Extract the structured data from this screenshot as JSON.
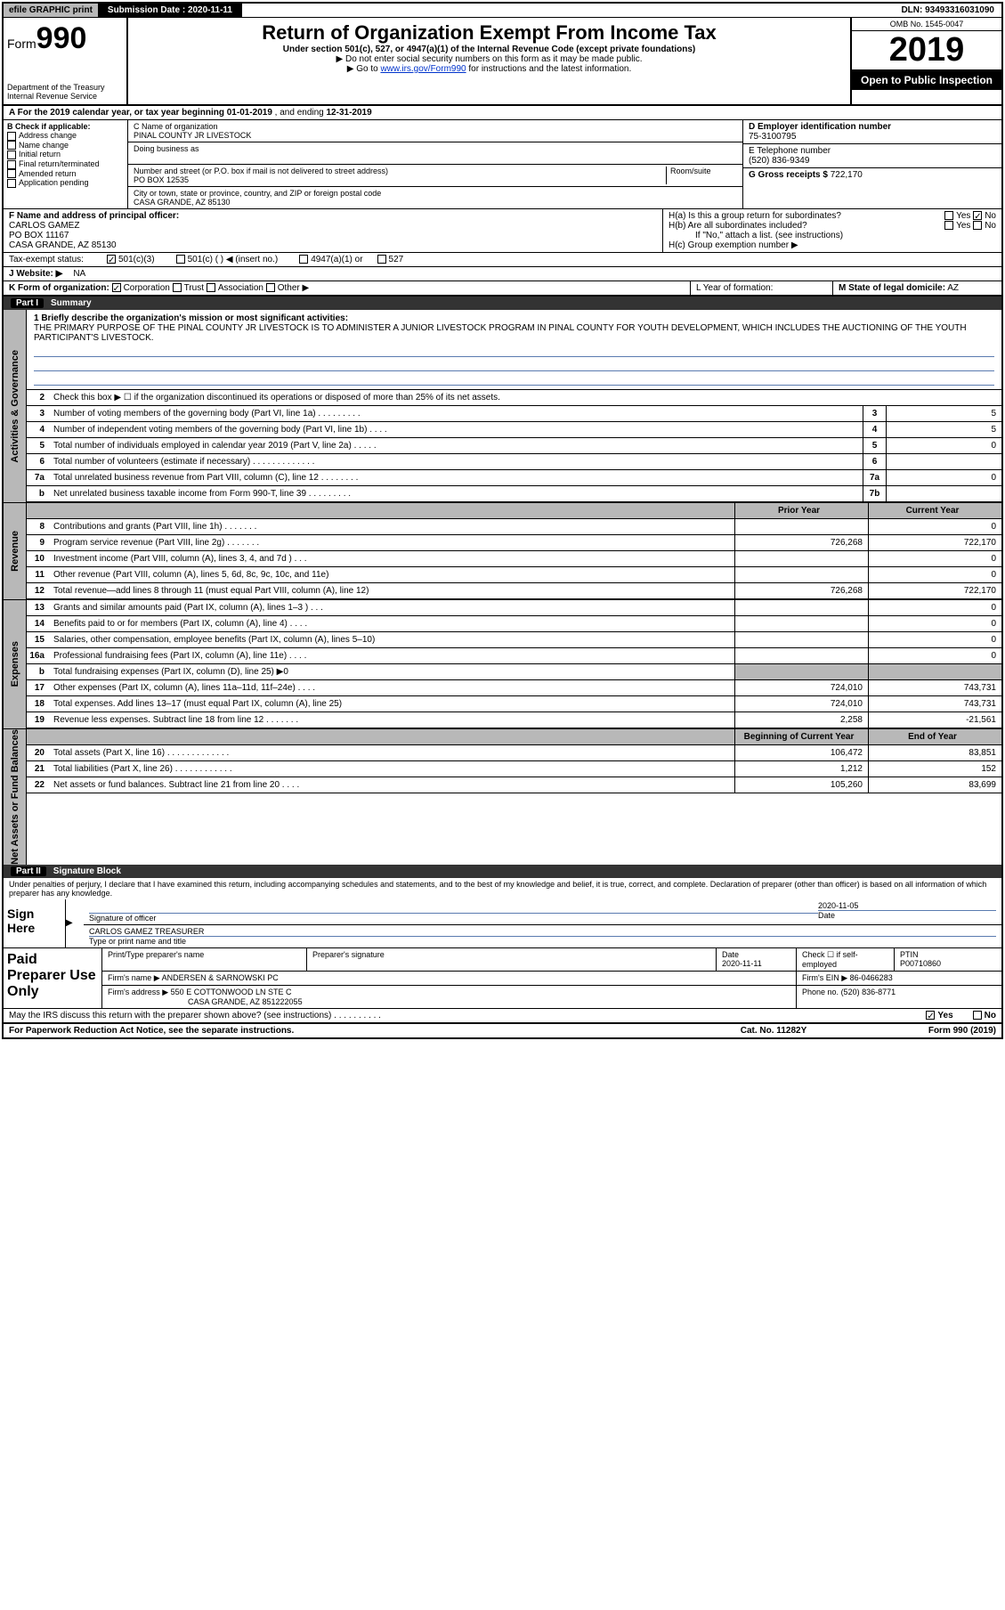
{
  "topbar": {
    "efile": "efile GRAPHIC print",
    "subdate_label": "Submission Date :",
    "subdate": "2020-11-11",
    "dln_label": "DLN:",
    "dln": "93493316031090"
  },
  "header": {
    "form_prefix": "Form",
    "form_number": "990",
    "title": "Return of Organization Exempt From Income Tax",
    "subtitle": "Under section 501(c), 527, or 4947(a)(1) of the Internal Revenue Code (except private foundations)",
    "note1": "▶ Do not enter social security numbers on this form as it may be made public.",
    "note2_prefix": "▶ Go to ",
    "note2_link": "www.irs.gov/Form990",
    "note2_suffix": " for instructions and the latest information.",
    "dept1": "Department of the Treasury",
    "dept2": "Internal Revenue Service",
    "omb": "OMB No. 1545-0047",
    "year": "2019",
    "open": "Open to Public Inspection"
  },
  "row_a": {
    "text_prefix": "A For the 2019 calendar year, or tax year beginning ",
    "begin": "01-01-2019",
    "mid": " , and ending ",
    "end": "12-31-2019"
  },
  "col_b": {
    "label": "B Check if applicable:",
    "items": [
      "Address change",
      "Name change",
      "Initial return",
      "Final return/terminated",
      "Amended return",
      "Application pending"
    ]
  },
  "col_c": {
    "name_label": "C Name of organization",
    "name": "PINAL COUNTY JR LIVESTOCK",
    "dba_label": "Doing business as",
    "addr_label": "Number and street (or P.O. box if mail is not delivered to street address)",
    "room_label": "Room/suite",
    "addr": "PO BOX 12535",
    "city_label": "City or town, state or province, country, and ZIP or foreign postal code",
    "city": "CASA GRANDE, AZ  85130"
  },
  "col_d": {
    "ein_label": "D Employer identification number",
    "ein": "75-3100795",
    "phone_label": "E Telephone number",
    "phone": "(520) 836-9349",
    "gross_label": "G Gross receipts $",
    "gross": "722,170"
  },
  "section_f": {
    "label": "F Name and address of principal officer:",
    "name": "CARLOS GAMEZ",
    "addr1": "PO BOX 11167",
    "addr2": "CASA GRANDE, AZ  85130"
  },
  "section_h": {
    "ha_label": "H(a)  Is this a group return for subordinates?",
    "ha_yes": "Yes",
    "ha_no": "No",
    "hb_label": "H(b)  Are all subordinates included?",
    "hb_yes": "Yes",
    "hb_no": "No",
    "hb_note": "If \"No,\" attach a list. (see instructions)",
    "hc_label": "H(c)  Group exemption number ▶"
  },
  "tax_exempt": {
    "label": "Tax-exempt status:",
    "opt1": "501(c)(3)",
    "opt2": "501(c) (   ) ◀ (insert no.)",
    "opt3": "4947(a)(1) or",
    "opt4": "527"
  },
  "website": {
    "label": "J   Website: ▶",
    "value": "NA"
  },
  "row_k": {
    "label": "K Form of organization:",
    "opts": [
      "Corporation",
      "Trust",
      "Association",
      "Other ▶"
    ],
    "l_label": "L Year of formation:",
    "m_label": "M State of legal domicile:",
    "m_val": "AZ"
  },
  "part1": {
    "tag": "Part I",
    "title": "Summary"
  },
  "summary": {
    "q1_label": "1  Briefly describe the organization's mission or most significant activities:",
    "q1_text": "THE PRIMARY PURPOSE OF THE PINAL COUNTY JR LIVESTOCK IS TO ADMINISTER A JUNIOR LIVESTOCK PROGRAM IN PINAL COUNTY FOR YOUTH DEVELOPMENT, WHICH INCLUDES THE AUCTIONING OF THE YOUTH PARTICIPANT'S LIVESTOCK.",
    "q2": "Check this box ▶ ☐  if the organization discontinued its operations or disposed of more than 25% of its net assets.",
    "lines_gov": [
      {
        "n": "3",
        "label": "Number of voting members of the governing body (Part VI, line 1a)  .   .   .   .   .   .   .   .   .",
        "box": "3",
        "val": "5"
      },
      {
        "n": "4",
        "label": "Number of independent voting members of the governing body (Part VI, line 1b)   .   .   .   .",
        "box": "4",
        "val": "5"
      },
      {
        "n": "5",
        "label": "Total number of individuals employed in calendar year 2019 (Part V, line 2a)   .   .   .   .   .",
        "box": "5",
        "val": "0"
      },
      {
        "n": "6",
        "label": "Total number of volunteers (estimate if necessary)   .   .   .   .   .   .   .   .   .   .   .   .   .",
        "box": "6",
        "val": ""
      },
      {
        "n": "7a",
        "label": "Total unrelated business revenue from Part VIII, column (C), line 12   .   .   .   .   .   .   .   .",
        "box": "7a",
        "val": "0"
      },
      {
        "n": "b",
        "label": "Net unrelated business taxable income from Form 990-T, line 39   .   .   .   .   .   .   .   .   .",
        "box": "7b",
        "val": ""
      }
    ],
    "col_prior": "Prior Year",
    "col_curr": "Current Year",
    "revenue": [
      {
        "n": "8",
        "label": "Contributions and grants (Part VIII, line 1h)   .   .   .   .   .   .   .",
        "prior": "",
        "curr": "0"
      },
      {
        "n": "9",
        "label": "Program service revenue (Part VIII, line 2g)   .   .   .   .   .   .   .",
        "prior": "726,268",
        "curr": "722,170"
      },
      {
        "n": "10",
        "label": "Investment income (Part VIII, column (A), lines 3, 4, and 7d )   .   .   .",
        "prior": "",
        "curr": "0"
      },
      {
        "n": "11",
        "label": "Other revenue (Part VIII, column (A), lines 5, 6d, 8c, 9c, 10c, and 11e)",
        "prior": "",
        "curr": "0"
      },
      {
        "n": "12",
        "label": "Total revenue—add lines 8 through 11 (must equal Part VIII, column (A), line 12)",
        "prior": "726,268",
        "curr": "722,170"
      }
    ],
    "expenses": [
      {
        "n": "13",
        "label": "Grants and similar amounts paid (Part IX, column (A), lines 1–3 )   .   .   .",
        "prior": "",
        "curr": "0"
      },
      {
        "n": "14",
        "label": "Benefits paid to or for members (Part IX, column (A), line 4)   .   .   .   .",
        "prior": "",
        "curr": "0"
      },
      {
        "n": "15",
        "label": "Salaries, other compensation, employee benefits (Part IX, column (A), lines 5–10)",
        "prior": "",
        "curr": "0"
      },
      {
        "n": "16a",
        "label": "Professional fundraising fees (Part IX, column (A), line 11e)   .   .   .   .",
        "prior": "",
        "curr": "0"
      },
      {
        "n": "b",
        "label": "Total fundraising expenses (Part IX, column (D), line 25) ▶0",
        "prior": "GRAY",
        "curr": "GRAY"
      },
      {
        "n": "17",
        "label": "Other expenses (Part IX, column (A), lines 11a–11d, 11f–24e)   .   .   .   .",
        "prior": "724,010",
        "curr": "743,731"
      },
      {
        "n": "18",
        "label": "Total expenses. Add lines 13–17 (must equal Part IX, column (A), line 25)",
        "prior": "724,010",
        "curr": "743,731"
      },
      {
        "n": "19",
        "label": "Revenue less expenses. Subtract line 18 from line 12   .   .   .   .   .   .   .",
        "prior": "2,258",
        "curr": "-21,561"
      }
    ],
    "col_begin": "Beginning of Current Year",
    "col_end": "End of Year",
    "netassets": [
      {
        "n": "20",
        "label": "Total assets (Part X, line 16)   .   .   .   .   .   .   .   .   .   .   .   .   .",
        "prior": "106,472",
        "curr": "83,851"
      },
      {
        "n": "21",
        "label": "Total liabilities (Part X, line 26)   .   .   .   .   .   .   .   .   .   .   .   .",
        "prior": "1,212",
        "curr": "152"
      },
      {
        "n": "22",
        "label": "Net assets or fund balances. Subtract line 21 from line 20   .   .   .   .",
        "prior": "105,260",
        "curr": "83,699"
      }
    ]
  },
  "vtabs": {
    "gov": "Activities & Governance",
    "rev": "Revenue",
    "exp": "Expenses",
    "net": "Net Assets or Fund Balances"
  },
  "part2": {
    "tag": "Part II",
    "title": "Signature Block"
  },
  "sig": {
    "penalty": "Under penalties of perjury, I declare that I have examined this return, including accompanying schedules and statements, and to the best of my knowledge and belief, it is true, correct, and complete. Declaration of preparer (other than officer) is based on all information of which preparer has any knowledge.",
    "sign_here": "Sign Here",
    "sig_officer": "Signature of officer",
    "sig_date": "2020-11-05",
    "date_label": "Date",
    "name_title": "CARLOS GAMEZ  TREASURER",
    "name_label": "Type or print name and title"
  },
  "paid": {
    "label": "Paid Preparer Use Only",
    "h1": "Print/Type preparer's name",
    "h2": "Preparer's signature",
    "h3": "Date",
    "h3v": "2020-11-11",
    "h4": "Check ☐ if self-employed",
    "h5": "PTIN",
    "h5v": "P00710860",
    "firm_label": "Firm's name    ▶",
    "firm": "ANDERSEN & SARNOWSKI PC",
    "ein_label": "Firm's EIN ▶",
    "ein": "86-0466283",
    "addr_label": "Firm's address ▶",
    "addr1": "550 E COTTONWOOD LN STE C",
    "addr2": "CASA GRANDE, AZ  851222055",
    "phone_label": "Phone no.",
    "phone": "(520) 836-8771"
  },
  "discuss": {
    "label": "May the IRS discuss this return with the preparer shown above? (see instructions)   .   .   .   .   .   .   .   .   .   .",
    "yes": "Yes",
    "no": "No"
  },
  "footer": {
    "left": "For Paperwork Reduction Act Notice, see the separate instructions.",
    "mid": "Cat. No. 11282Y",
    "right": "Form 990 (2019)"
  }
}
